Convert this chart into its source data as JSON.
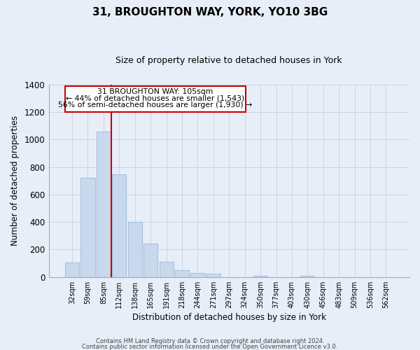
{
  "title": "31, BROUGHTON WAY, YORK, YO10 3BG",
  "subtitle": "Size of property relative to detached houses in York",
  "xlabel": "Distribution of detached houses by size in York",
  "ylabel": "Number of detached properties",
  "footer_lines": [
    "Contains HM Land Registry data © Crown copyright and database right 2024.",
    "Contains public sector information licensed under the Open Government Licence v3.0."
  ],
  "bar_labels": [
    "32sqm",
    "59sqm",
    "85sqm",
    "112sqm",
    "138sqm",
    "165sqm",
    "191sqm",
    "218sqm",
    "244sqm",
    "271sqm",
    "297sqm",
    "324sqm",
    "350sqm",
    "377sqm",
    "403sqm",
    "430sqm",
    "456sqm",
    "483sqm",
    "509sqm",
    "536sqm",
    "562sqm"
  ],
  "bar_values": [
    107,
    720,
    1057,
    748,
    400,
    244,
    110,
    48,
    28,
    22,
    0,
    0,
    10,
    0,
    0,
    10,
    0,
    0,
    0,
    0,
    0
  ],
  "bar_color": "#c8d9ee",
  "bar_edge_color": "#a8c0de",
  "ylim": [
    0,
    1400
  ],
  "yticks": [
    0,
    200,
    400,
    600,
    800,
    1000,
    1200,
    1400
  ],
  "property_line_color": "#cc0000",
  "annotation_line1": "31 BROUGHTON WAY: 105sqm",
  "annotation_line2": "← 44% of detached houses are smaller (1,543)",
  "annotation_line3": "56% of semi-detached houses are larger (1,930) →",
  "annotation_box_edge_color": "#cc0000",
  "annotation_box_face_color": "#ffffff",
  "grid_color": "#c8d4e8",
  "background_color": "#e8eef8"
}
